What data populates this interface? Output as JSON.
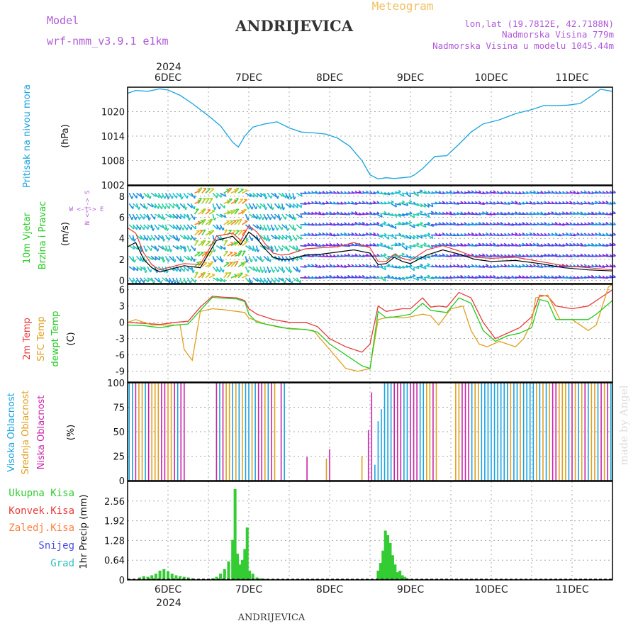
{
  "header": {
    "model_label": "Model",
    "model_name": "wrf-nmm_v3.9.1  e1km",
    "station": "ANDRIJEVICA",
    "product": "Meteogram",
    "lonlat": "lon,lat (19.7812E, 42.7188N)",
    "elevation": "Nadmorska Visina 779m",
    "model_elevation": "Nadmorska Visina u modelu 1045.44m",
    "footer": "ANDRIJEVICA",
    "watermark": "made by Angel"
  },
  "colors": {
    "pressure": "#1aa3e0",
    "temp2m": "#e83a3a",
    "sfctemp": "#e0a020",
    "dewpt": "#22cc22",
    "total_precip": "#33cc33",
    "conv_precip": "#e83a3a",
    "frozen_precip": "#ff8040",
    "snow": "#4a4ae8",
    "graupel": "#30c0c0",
    "high_cloud": "#1aa3e0",
    "mid_cloud": "#e0a020",
    "low_cloud": "#cc22aa"
  },
  "time_axis": {
    "top_year": "2024",
    "bottom_year": "2024",
    "days": [
      "6DEC",
      "7DEC",
      "8DEC",
      "9DEC",
      "10DEC",
      "11DEC"
    ],
    "day_positions": [
      6,
      7,
      8,
      9,
      10,
      11
    ],
    "range": [
      5.5,
      11.5
    ]
  },
  "chart_data": [
    {
      "id": "pressure",
      "type": "line",
      "ylabel_title": "Pritisak na nivou mora",
      "ylabel_unit": "(hPa)",
      "yticks": [
        "1020",
        "1014",
        "1008",
        "1002"
      ],
      "ytick_values": [
        1020,
        1014,
        1008,
        1002
      ],
      "ylim": [
        1002,
        1026
      ],
      "x": [
        5.5,
        5.6,
        5.75,
        5.9,
        6.0,
        6.15,
        6.3,
        6.5,
        6.65,
        6.8,
        6.87,
        6.95,
        7.05,
        7.2,
        7.35,
        7.5,
        7.65,
        7.8,
        7.95,
        8.1,
        8.25,
        8.4,
        8.5,
        8.6,
        8.7,
        8.8,
        8.9,
        9.0,
        9.05,
        9.15,
        9.3,
        9.45,
        9.6,
        9.75,
        9.9,
        10.1,
        10.3,
        10.5,
        10.65,
        10.8,
        10.95,
        11.1,
        11.25,
        11.35,
        11.5
      ],
      "y": [
        1024.5,
        1025.2,
        1025.0,
        1025.6,
        1025.3,
        1024.0,
        1022.0,
        1019.0,
        1016.5,
        1012.5,
        1011.3,
        1014.0,
        1016.2,
        1017.0,
        1017.5,
        1016.0,
        1015.0,
        1014.8,
        1014.5,
        1013.5,
        1011.5,
        1008.0,
        1004.5,
        1003.5,
        1003.8,
        1003.6,
        1003.8,
        1004.0,
        1004.5,
        1006.0,
        1009.0,
        1009.2,
        1012.0,
        1015.0,
        1017.0,
        1018.0,
        1019.5,
        1020.5,
        1021.5,
        1021.5,
        1021.6,
        1022.0,
        1024.0,
        1025.5,
        1025.0
      ]
    },
    {
      "id": "wind",
      "type": "line",
      "ylabel_title1": "10m Vjetar",
      "ylabel_title2": "Brzina i Pravac",
      "ylabel_unit": "(m/s)",
      "compass_ns": "N <-|-> S",
      "compass_we": "W <-|-> E",
      "yticks": [
        "8",
        "6",
        "4",
        "2",
        "0"
      ],
      "ytick_values": [
        8,
        6,
        4,
        2,
        0
      ],
      "ylim": [
        -0.3,
        9.0
      ],
      "series": [
        {
          "color": "#000000",
          "x": [
            5.5,
            5.6,
            5.7,
            5.8,
            5.9,
            6.0,
            6.2,
            6.4,
            6.6,
            6.8,
            6.9,
            7.0,
            7.1,
            7.2,
            7.3,
            7.4,
            7.5,
            7.7,
            7.9,
            8.1,
            8.3,
            8.5,
            8.6,
            8.7,
            8.8,
            8.9,
            9.0,
            9.2,
            9.4,
            9.6,
            9.8,
            10.0,
            10.3,
            10.6,
            10.9,
            11.2,
            11.5
          ],
          "y": [
            3.2,
            3.6,
            2.0,
            1.2,
            0.8,
            1.0,
            1.4,
            1.2,
            3.8,
            4.2,
            3.4,
            4.6,
            4.0,
            3.0,
            2.2,
            2.0,
            2.0,
            2.4,
            2.5,
            2.7,
            2.9,
            2.6,
            1.5,
            1.6,
            2.2,
            1.8,
            1.6,
            2.4,
            2.9,
            2.5,
            2.0,
            1.8,
            1.9,
            1.6,
            1.2,
            1.0,
            0.9
          ]
        },
        {
          "color": "#e83a3a",
          "x": [
            5.5,
            5.6,
            5.7,
            5.8,
            5.9,
            6.0,
            6.2,
            6.4,
            6.6,
            6.8,
            6.9,
            7.0,
            7.1,
            7.2,
            7.3,
            7.4,
            7.5,
            7.7,
            7.9,
            8.1,
            8.3,
            8.5,
            8.6,
            8.7,
            8.8,
            8.9,
            9.0,
            9.2,
            9.4,
            9.6,
            9.8,
            10.0,
            10.3,
            10.6,
            10.9,
            11.2,
            11.5
          ],
          "y": [
            5.0,
            4.5,
            2.6,
            1.5,
            1.0,
            1.2,
            1.6,
            1.5,
            4.2,
            4.5,
            3.8,
            5.2,
            4.6,
            3.5,
            2.6,
            2.4,
            2.5,
            3.0,
            3.1,
            3.2,
            3.6,
            3.1,
            1.8,
            1.8,
            2.5,
            2.1,
            1.9,
            2.9,
            3.3,
            2.8,
            2.2,
            2.1,
            2.2,
            1.8,
            1.4,
            1.2,
            1.0
          ]
        }
      ]
    },
    {
      "id": "temperature",
      "type": "line",
      "ylabel_t1": "2m Temp",
      "ylabel_t2": "SFC Temp",
      "ylabel_t3": "dewpt Temp",
      "ylabel_unit": "(C)",
      "yticks": [
        "6",
        "3",
        "0",
        "-3",
        "-6",
        "-9"
      ],
      "ytick_values": [
        6,
        3,
        0,
        -3,
        -6,
        -9
      ],
      "ylim": [
        -11.0,
        7.0
      ],
      "series": [
        {
          "color": "#e83a3a",
          "x": [
            5.5,
            5.7,
            5.9,
            6.1,
            6.25,
            6.4,
            6.55,
            6.7,
            6.85,
            6.95,
            7.0,
            7.1,
            7.3,
            7.5,
            7.7,
            7.85,
            8.0,
            8.2,
            8.4,
            8.5,
            8.6,
            8.7,
            8.9,
            9.0,
            9.15,
            9.25,
            9.35,
            9.45,
            9.6,
            9.75,
            9.9,
            10.05,
            10.2,
            10.35,
            10.5,
            10.6,
            10.7,
            10.8,
            11.0,
            11.2,
            11.3,
            11.5
          ],
          "y": [
            0,
            -0.2,
            -0.4,
            0.0,
            0.2,
            2.8,
            4.8,
            4.6,
            4.5,
            4.0,
            2.5,
            1.5,
            0.5,
            0.0,
            0,
            -0.8,
            -3.0,
            -4.5,
            -5.5,
            -4.0,
            3.0,
            2.0,
            2.5,
            2.5,
            4.5,
            2.8,
            3.0,
            2.8,
            5.5,
            4.5,
            0.0,
            -3.0,
            -2.0,
            -1.0,
            1.0,
            5.0,
            4.8,
            3.0,
            2.5,
            3.0,
            4.0,
            6.0
          ]
        },
        {
          "color": "#e0a020",
          "x": [
            5.5,
            5.6,
            5.8,
            6.0,
            6.15,
            6.2,
            6.3,
            6.4,
            6.55,
            6.7,
            6.85,
            6.95,
            7.0,
            7.2,
            7.4,
            7.6,
            7.8,
            8.0,
            8.2,
            8.35,
            8.5,
            8.6,
            8.75,
            8.9,
            9.0,
            9.15,
            9.25,
            9.35,
            9.5,
            9.65,
            9.75,
            9.85,
            9.95,
            10.1,
            10.3,
            10.4,
            10.5,
            10.55,
            10.7,
            10.85,
            11.0,
            11.2,
            11.3,
            11.45,
            11.5
          ],
          "y": [
            0.0,
            0.5,
            -0.5,
            -0.5,
            -0.5,
            -5.0,
            -7.0,
            2.0,
            2.5,
            2.3,
            2.0,
            1.8,
            0.8,
            -0.3,
            -1.0,
            -1.2,
            -1.5,
            -5.0,
            -8.5,
            -9.0,
            -8.5,
            0.5,
            1.0,
            0.8,
            1.0,
            1.5,
            1.2,
            -0.5,
            2.5,
            3.0,
            -1.5,
            -4.0,
            -4.5,
            -3.5,
            -4.5,
            -3.0,
            0.0,
            4.5,
            5.0,
            0.5,
            0.5,
            -1.5,
            -0.5,
            6.5,
            7.0
          ]
        },
        {
          "color": "#22cc22",
          "x": [
            5.5,
            5.7,
            5.9,
            6.1,
            6.25,
            6.4,
            6.55,
            6.7,
            6.85,
            6.95,
            7.0,
            7.1,
            7.3,
            7.5,
            7.7,
            7.85,
            8.0,
            8.2,
            8.4,
            8.5,
            8.6,
            8.7,
            8.9,
            9.0,
            9.15,
            9.25,
            9.35,
            9.45,
            9.6,
            9.75,
            9.9,
            10.05,
            10.2,
            10.35,
            10.5,
            10.6,
            10.7,
            10.8,
            11.0,
            11.2,
            11.3,
            11.5
          ],
          "y": [
            -0.5,
            -0.6,
            -1.0,
            -0.5,
            -0.3,
            2.2,
            4.6,
            4.4,
            4.3,
            3.8,
            1.5,
            0.0,
            -0.6,
            -1.2,
            -1.3,
            -1.8,
            -4.0,
            -6.0,
            -8.0,
            -8.5,
            2.0,
            0.8,
            1.2,
            1.5,
            3.5,
            2.2,
            2.0,
            1.8,
            4.5,
            3.5,
            -1.5,
            -3.5,
            -2.5,
            -2.0,
            -1.0,
            4.2,
            3.8,
            0.5,
            0.5,
            0.5,
            1.5,
            4.0
          ]
        }
      ]
    },
    {
      "id": "clouds",
      "type": "bar",
      "ylabel_c1": "Visoka Oblacnost",
      "ylabel_c2": "Srednja Oblacnost",
      "ylabel_c3": "Niska Oblacnost",
      "ylabel_unit": "(%)",
      "yticks": [
        "100",
        "75",
        "50",
        "25",
        "0"
      ],
      "ytick_values": [
        100,
        75,
        50,
        25,
        0
      ],
      "ylim": [
        0,
        100
      ]
    },
    {
      "id": "precip",
      "type": "bar",
      "legend": [
        "Ukupna Kisa",
        "Konvek.Kisa",
        "Zaledj.Kisa",
        "Snijeg",
        "Grad"
      ],
      "ylabel_unit": "1hr Precip (mm)",
      "yticks": [
        "2.56",
        "1.92",
        "1.28",
        "0.64",
        "0"
      ],
      "ytick_values": [
        2.56,
        1.92,
        1.28,
        0.64,
        0
      ],
      "ylim": [
        0,
        3.2
      ],
      "series": [
        {
          "color": "#33cc33",
          "x": [
            5.65,
            5.7,
            5.75,
            5.8,
            5.85,
            5.9,
            5.95,
            6.0,
            6.05,
            6.1,
            6.15,
            6.2,
            6.25,
            6.3,
            6.55,
            6.6,
            6.65,
            6.7,
            6.75,
            6.8,
            6.83,
            6.86,
            6.89,
            6.92,
            6.95,
            6.98,
            7.01,
            7.05,
            7.1,
            7.15,
            7.2,
            8.6,
            8.63,
            8.66,
            8.69,
            8.72,
            8.75,
            8.78,
            8.81,
            8.84,
            8.87,
            8.9,
            8.93,
            8.96,
            9.0
          ],
          "y": [
            0.08,
            0.12,
            0.1,
            0.15,
            0.2,
            0.3,
            0.35,
            0.28,
            0.2,
            0.15,
            0.12,
            0.1,
            0.08,
            0.05,
            0.05,
            0.1,
            0.2,
            0.35,
            0.6,
            1.3,
            2.95,
            0.85,
            0.5,
            0.65,
            1.0,
            1.7,
            0.3,
            0.2,
            0.08,
            0.05,
            0.03,
            0.3,
            0.55,
            0.95,
            1.6,
            1.45,
            1.2,
            0.8,
            0.5,
            0.25,
            0.3,
            0.15,
            0.1,
            0.05,
            0.03
          ]
        }
      ]
    }
  ]
}
